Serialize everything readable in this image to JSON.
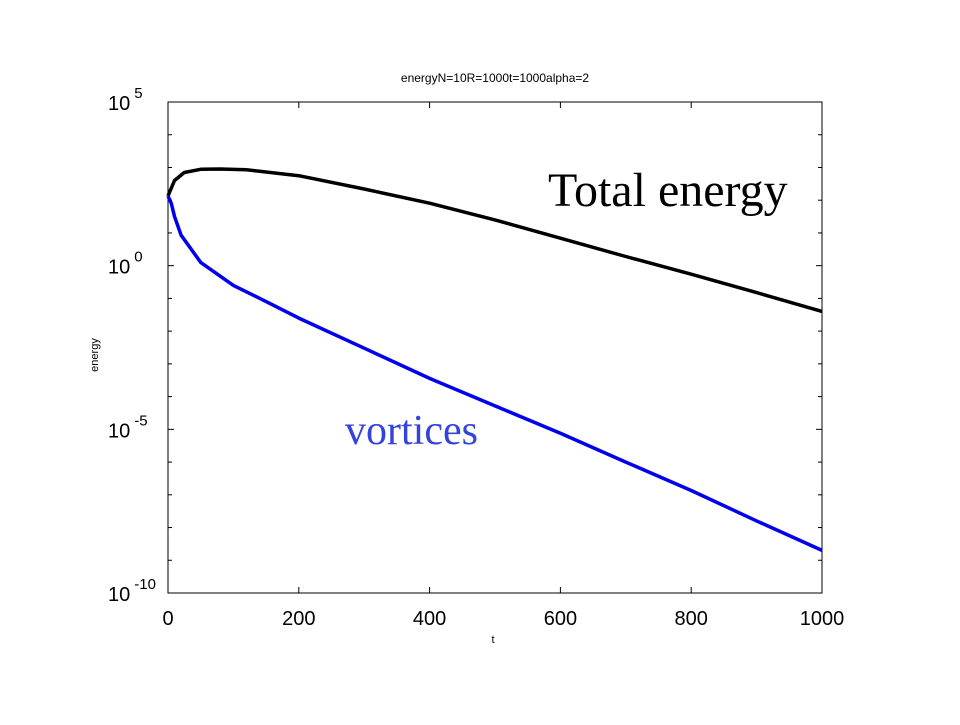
{
  "chart_data": {
    "type": "line",
    "title": "energyN=10R=1000t=1000alpha=2",
    "xlabel": "t",
    "ylabel": "energy",
    "yscale": "log",
    "xlim": [
      0,
      1000
    ],
    "xticks": [
      0,
      200,
      400,
      600,
      800,
      1000
    ],
    "ylim": [
      1e-10,
      100000
    ],
    "yticks": [
      {
        "value": 1e-10,
        "label": "10^-10"
      },
      {
        "value": 1e-05,
        "label": "10^-5"
      },
      {
        "value": 1,
        "label": "10^0"
      },
      {
        "value": 100000,
        "label": "10^5"
      }
    ],
    "yminorticks": [
      10000,
      1000,
      100,
      10,
      0.1,
      0.01,
      0.001,
      0.0001,
      1e-06,
      1e-07,
      1e-08,
      1e-09
    ],
    "series": [
      {
        "color": "#000000",
        "x": [
          0,
          10,
          25,
          50,
          80,
          120,
          200,
          300,
          400,
          500,
          600,
          700,
          800,
          900,
          1000
        ],
        "values": [
          135,
          400,
          700,
          880,
          900,
          850,
          560,
          220,
          81,
          25,
          6.9,
          1.9,
          0.55,
          0.15,
          0.04
        ]
      },
      {
        "color": "#0000ee",
        "x": [
          0,
          5,
          10,
          20,
          50,
          100,
          150,
          200,
          300,
          400,
          500,
          600,
          700,
          800,
          900,
          1000
        ],
        "values": [
          135,
          80,
          32,
          8.5,
          1.26,
          0.25,
          0.08,
          0.025,
          0.003,
          0.00036,
          5.2e-05,
          7.6e-06,
          1e-06,
          1.35e-07,
          1.6e-08,
          2e-09
        ]
      }
    ],
    "annotations": [
      {
        "text": "Total energy",
        "color": "#000000"
      },
      {
        "text": "vortices",
        "color": "#3344dd"
      }
    ]
  }
}
